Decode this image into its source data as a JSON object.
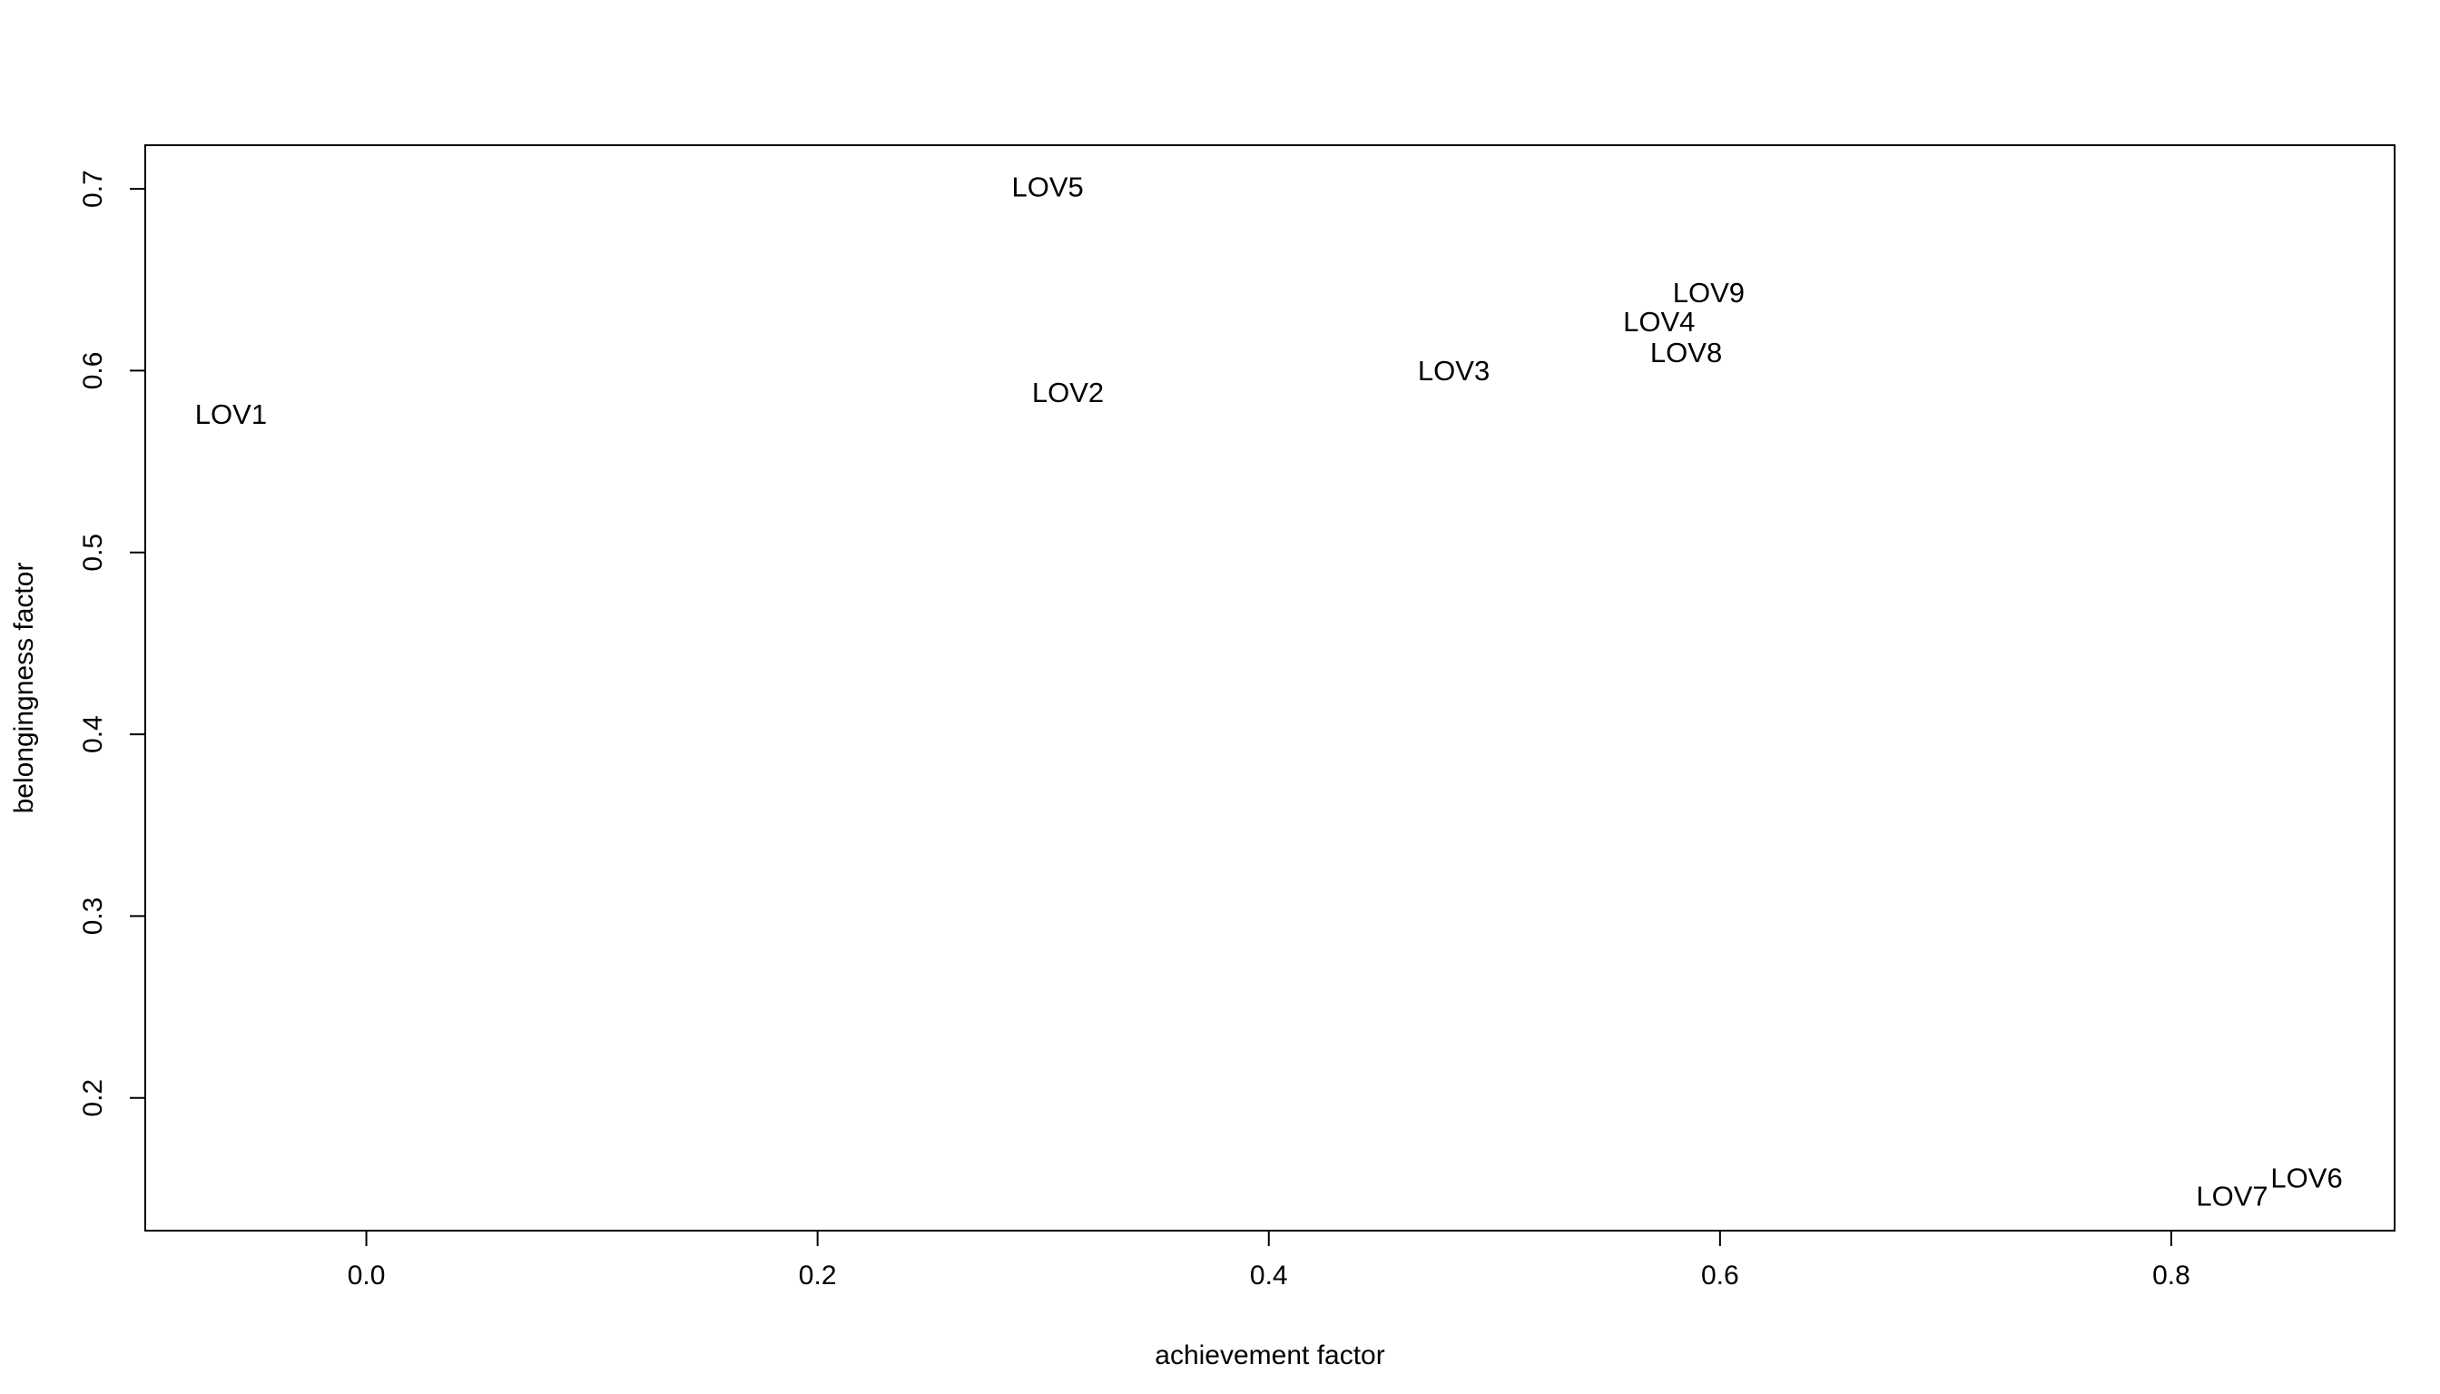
{
  "chart_data": {
    "type": "scatter",
    "title": "",
    "xlabel": "achievement factor",
    "ylabel": "belongingness factor",
    "xlim": [
      -0.098,
      0.899
    ],
    "ylim": [
      0.127,
      0.724
    ],
    "xticks": [
      0.0,
      0.2,
      0.4,
      0.6,
      0.8
    ],
    "xtick_labels": [
      "0.0",
      "0.2",
      "0.4",
      "0.6",
      "0.8"
    ],
    "yticks": [
      0.2,
      0.3,
      0.4,
      0.5,
      0.6,
      0.7
    ],
    "ytick_labels": [
      "0.2",
      "0.3",
      "0.4",
      "0.5",
      "0.6",
      "0.7"
    ],
    "grid": false,
    "legend": "none",
    "marker": "text-label",
    "points": [
      {
        "label": "LOV1",
        "x": -0.06,
        "y": 0.576
      },
      {
        "label": "LOV2",
        "x": 0.311,
        "y": 0.588
      },
      {
        "label": "LOV3",
        "x": 0.482,
        "y": 0.6
      },
      {
        "label": "LOV4",
        "x": 0.573,
        "y": 0.627
      },
      {
        "label": "LOV5",
        "x": 0.302,
        "y": 0.701
      },
      {
        "label": "LOV6",
        "x": 0.86,
        "y": 0.156
      },
      {
        "label": "LOV7",
        "x": 0.827,
        "y": 0.146
      },
      {
        "label": "LOV8",
        "x": 0.585,
        "y": 0.61
      },
      {
        "label": "LOV9",
        "x": 0.595,
        "y": 0.643
      }
    ]
  }
}
